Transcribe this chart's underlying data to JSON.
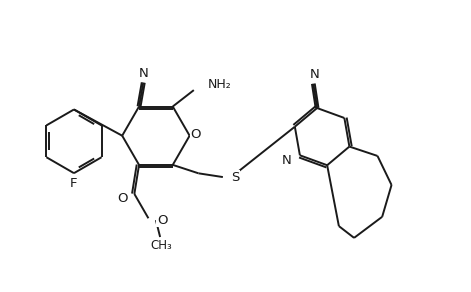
{
  "bg_color": "#ffffff",
  "line_color": "#1a1a1a",
  "bond_lw": 1.4,
  "font_size": 8.5,
  "fig_width": 4.71,
  "fig_height": 2.92,
  "dpi": 100,
  "xlim": [
    0,
    10
  ],
  "ylim": [
    0,
    6
  ]
}
